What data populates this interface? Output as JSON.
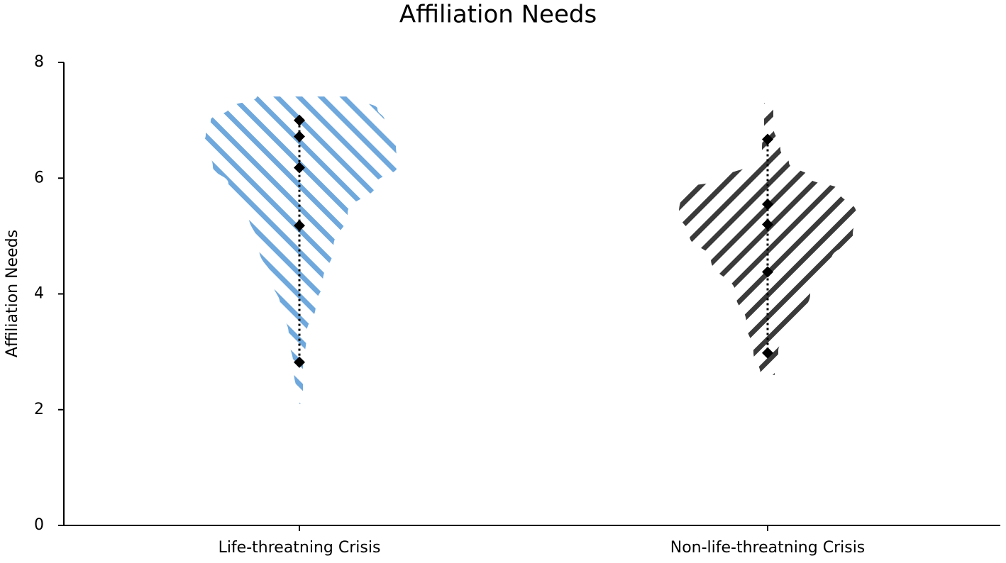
{
  "chart_data": {
    "type": "violin",
    "title": "Affiliation Needs",
    "y_label": "Affiliation Needs",
    "categories": [
      "Life-threatning Crisis",
      "Non-life-threatning Crisis"
    ],
    "ylim": [
      0,
      8
    ],
    "yticks": [
      0,
      2,
      4,
      6,
      8
    ],
    "series": [
      {
        "color": "#6fa8dc",
        "hatch": "backslash",
        "values": [
          7.0,
          6.72,
          6.18,
          5.18,
          2.82
        ],
        "violin_y": [
          7.41,
          7.2,
          7.0,
          6.75,
          6.6,
          6.2,
          5.9,
          5.4,
          4.8,
          4.2,
          3.8,
          3.3,
          2.7,
          2.1
        ],
        "violin_left": [
          60,
          100,
          125,
          132,
          135,
          122,
          100,
          72,
          57,
          37,
          27,
          15,
          8,
          0
        ],
        "violin_right": [
          70,
          110,
          120,
          135,
          136,
          138,
          108,
          68,
          48,
          33,
          23,
          10,
          5,
          5
        ]
      },
      {
        "color": "#3a3a3a",
        "hatch": "slash",
        "values": [
          6.67,
          5.55,
          5.2,
          4.38,
          2.98
        ],
        "violin_y": [
          7.3,
          6.9,
          6.5,
          6.27,
          6.0,
          5.8,
          5.4,
          5.0,
          4.6,
          4.0,
          3.5,
          3.0,
          2.6
        ],
        "violin_left": [
          5,
          5,
          8,
          22,
          60,
          120,
          125,
          110,
          80,
          45,
          30,
          20,
          10
        ],
        "violin_right": [
          8,
          8,
          18,
          30,
          60,
          100,
          125,
          120,
          90,
          60,
          40,
          15,
          10
        ]
      }
    ]
  }
}
